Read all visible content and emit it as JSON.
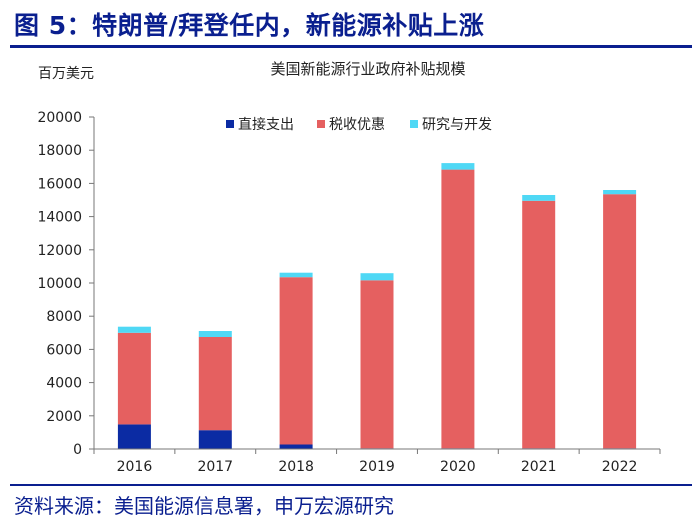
{
  "header": {
    "title": "图 5：特朗普/拜登任内，新能源补贴上涨"
  },
  "footer": {
    "source": "资料来源：美国能源信息署，申万宏源研究"
  },
  "colors": {
    "brand": "#0a1f8f"
  },
  "chart_data": {
    "type": "bar",
    "stacked": true,
    "title": "美国新能源行业政府补贴规模",
    "unit_label": "百万美元",
    "categories": [
      "2016",
      "2017",
      "2018",
      "2019",
      "2020",
      "2021",
      "2022"
    ],
    "ylim": [
      0,
      20000
    ],
    "yticks": [
      "0",
      "2000",
      "4000",
      "6000",
      "8000",
      "10000",
      "12000",
      "14000",
      "16000",
      "18000",
      "20000"
    ],
    "legend_position": "top",
    "series": [
      {
        "name": "直接支出",
        "color": "#0b2ba3",
        "values": [
          1480,
          1130,
          270,
          40,
          40,
          40,
          40
        ]
      },
      {
        "name": "税收优惠",
        "color": "#e56060",
        "values": [
          5520,
          5620,
          10080,
          10120,
          16790,
          14910,
          15310
        ]
      },
      {
        "name": "研究与开发",
        "color": "#4fd8f5",
        "values": [
          370,
          360,
          270,
          430,
          390,
          350,
          250
        ]
      }
    ]
  }
}
